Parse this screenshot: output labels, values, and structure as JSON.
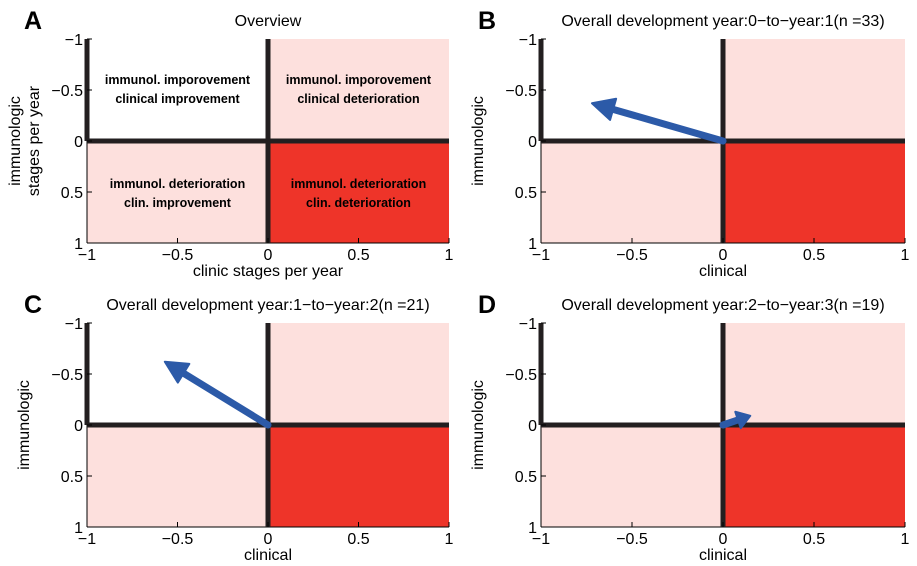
{
  "colors": {
    "quadrant_light": "#fde0dd",
    "quadrant_dark": "#ee3429",
    "quadrant_white": "#ffffff",
    "arrow": "#2c5aa8",
    "axis_lines": "#231f20"
  },
  "chart_data": [
    {
      "type": "quiver",
      "panel": "A",
      "title": "Overview",
      "xlabel": "clinic stages per year",
      "ylabel": [
        "immunologic",
        "stages per year"
      ],
      "xlim": [
        -1,
        1
      ],
      "ylim": [
        -1,
        1
      ],
      "y_inverted": true,
      "xticks": [
        "−1",
        "−0.5",
        "0",
        "0.5",
        "1"
      ],
      "yticks": [
        "−1",
        "−0.5",
        "0",
        "0.5",
        "1"
      ],
      "quadrants": {
        "top_left": [
          "immunol. imporovement",
          "clinical improvement"
        ],
        "top_right": [
          "immunol. imporovement",
          "clinical deterioration"
        ],
        "bottom_left": [
          "immunol. deterioration",
          "clin. improvement"
        ],
        "bottom_right": [
          "immunol. deterioration",
          "clin. deterioration"
        ]
      },
      "arrow": null
    },
    {
      "type": "quiver",
      "panel": "B",
      "title": "Overall development year:0−to−year:1(n =33)",
      "xlabel": "clinical",
      "ylabel": [
        "immunologic"
      ],
      "xlim": [
        -1,
        1
      ],
      "ylim": [
        -1,
        1
      ],
      "y_inverted": true,
      "xticks": [
        "−1",
        "−0.5",
        "0",
        "0.5",
        "1"
      ],
      "yticks": [
        "−1",
        "−0.5",
        "0",
        "0.5",
        "1"
      ],
      "quadrants": null,
      "arrow": {
        "x0": 0,
        "y0": 0,
        "dx": -0.72,
        "dy": -0.37
      }
    },
    {
      "type": "quiver",
      "panel": "C",
      "title": "Overall development year:1−to−year:2(n =21)",
      "xlabel": "clinical",
      "ylabel": [
        "immunologic"
      ],
      "xlim": [
        -1,
        1
      ],
      "ylim": [
        -1,
        1
      ],
      "y_inverted": true,
      "xticks": [
        "−1",
        "−0.5",
        "0",
        "0.5",
        "1"
      ],
      "yticks": [
        "−1",
        "−0.5",
        "0",
        "0.5",
        "1"
      ],
      "quadrants": null,
      "arrow": {
        "x0": 0,
        "y0": 0,
        "dx": -0.57,
        "dy": -0.62
      }
    },
    {
      "type": "quiver",
      "panel": "D",
      "title": "Overall development year:2−to−year:3(n =19)",
      "xlabel": "clinical",
      "ylabel": [
        "immunologic"
      ],
      "xlim": [
        -1,
        1
      ],
      "ylim": [
        -1,
        1
      ],
      "y_inverted": true,
      "xticks": [
        "−1",
        "−0.5",
        "0",
        "0.5",
        "1"
      ],
      "yticks": [
        "−1",
        "−0.5",
        "0",
        "0.5",
        "1"
      ],
      "quadrants": null,
      "arrow": {
        "x0": 0,
        "y0": 0,
        "dx": 0.15,
        "dy": -0.09
      }
    }
  ]
}
